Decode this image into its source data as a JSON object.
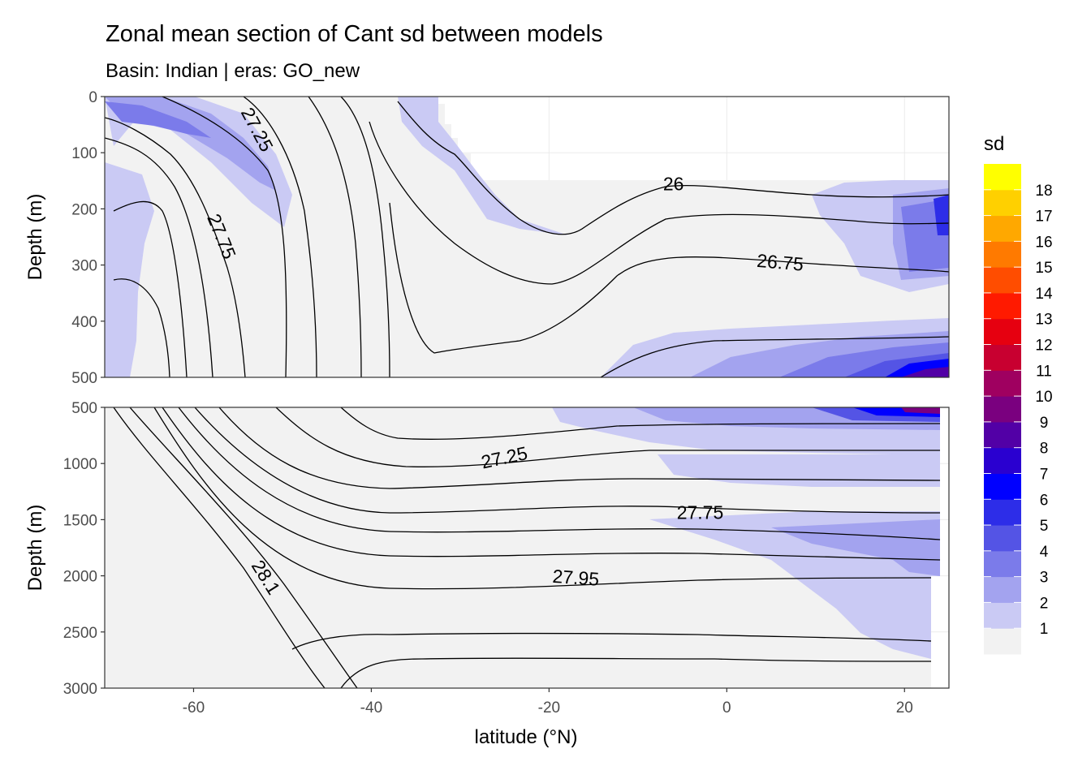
{
  "chart_data": {
    "type": "heatmap",
    "title": "Zonal mean section of Cant sd between models",
    "subtitle": "Basin: Indian | eras: GO_new",
    "xlabel": "latitude (°N)",
    "ylabel": "Depth (m)",
    "xlim": [
      -70,
      25
    ],
    "x_ticks": [
      -60,
      -40,
      -20,
      0,
      20
    ],
    "panels": [
      {
        "name": "upper",
        "ylim": [
          0,
          500
        ],
        "y_ticks": [
          0,
          100,
          200,
          300,
          400,
          500
        ]
      },
      {
        "name": "lower",
        "ylim": [
          500,
          3000
        ],
        "y_ticks": [
          500,
          1000,
          1500,
          2000,
          2500,
          3000
        ]
      }
    ],
    "legend": {
      "title": "sd",
      "position": "right",
      "levels": [
        1,
        2,
        3,
        4,
        5,
        6,
        7,
        8,
        9,
        10,
        11,
        12,
        13,
        14,
        15,
        16,
        17,
        18
      ],
      "colors": [
        "#f2f2f2",
        "#cacaf4",
        "#a3a3ef",
        "#7b7bea",
        "#5454e5",
        "#2d2de8",
        "#0000ff",
        "#2a00d0",
        "#5200a6",
        "#7a007f",
        "#9f0060",
        "#c80030",
        "#e60010",
        "#ff1a00",
        "#ff4d00",
        "#ff7a00",
        "#ffa800",
        "#ffd000",
        "#ffff00"
      ]
    },
    "contours": [
      {
        "panel": "upper",
        "label": "27.25",
        "x": -53,
        "y": 60
      },
      {
        "panel": "upper",
        "label": "27.75",
        "x": -57,
        "y": 250
      },
      {
        "panel": "upper",
        "label": "26",
        "x": -6,
        "y": 158
      },
      {
        "panel": "upper",
        "label": "26.75",
        "x": 6,
        "y": 298
      },
      {
        "panel": "lower",
        "label": "27.25",
        "x": -25,
        "y": 960
      },
      {
        "panel": "lower",
        "label": "27.75",
        "x": -3,
        "y": 1450
      },
      {
        "panel": "lower",
        "label": "27.95",
        "x": -17,
        "y": 2030
      },
      {
        "panel": "lower",
        "label": "28.1",
        "x": -52,
        "y": 2020
      }
    ],
    "grid": true
  }
}
